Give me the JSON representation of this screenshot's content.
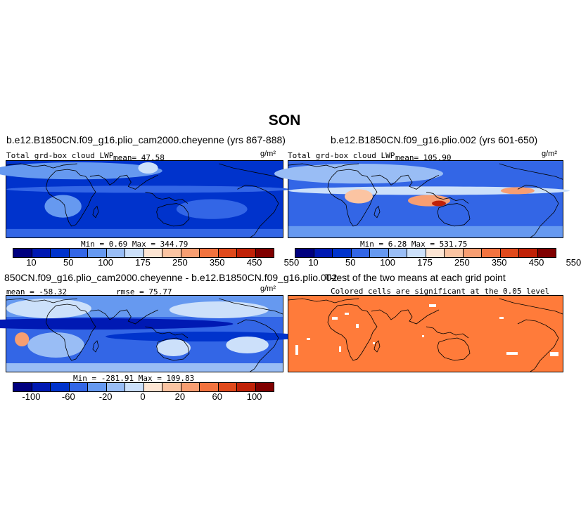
{
  "figure": {
    "title": "SON"
  },
  "panels": [
    {
      "title": "b.e12.B1850CN.f09_g16.plio_cam2000.cheyenne (yrs 867-888)",
      "left_label": "Total grd-box cloud LWP",
      "stat_label": "mean=  47.58",
      "units": "g/m²",
      "minmax": "Min =    0.69  Max = 344.79",
      "colorbar_ticks": [
        "10",
        "50",
        "100",
        "175",
        "250",
        "350",
        "450",
        "550"
      ],
      "field": "control"
    },
    {
      "title": "b.e12.B1850CN.f09_g16.plio.002 (yrs 601-650)",
      "left_label": "Total grd-box cloud LWP",
      "stat_label": "mean= 105.90",
      "units": "g/m²",
      "minmax": "Min =    6.28  Max = 531.75",
      "colorbar_ticks": [
        "10",
        "50",
        "100",
        "175",
        "250",
        "350",
        "450",
        "550"
      ],
      "field": "experiment"
    },
    {
      "title": "850CN.f09_g16.plio_cam2000.cheyenne - b.e12.B1850CN.f09_g16.plio.002",
      "left_label": "mean = -58.32",
      "stat_label": "rmse =  75.77",
      "units": "g/m²",
      "minmax": "Min = -281.91  Max = 109.83",
      "colorbar_ticks": [
        "-100",
        "-60",
        "-20",
        "0",
        "20",
        "60",
        "100"
      ],
      "field": "difference"
    },
    {
      "title": "T-test of the two means at each grid point",
      "subtitle": "Colored cells are significant at the 0.05 level",
      "field": "ttest"
    }
  ],
  "colors": {
    "abs_scale": [
      "#00007f",
      "#0019b3",
      "#0033cc",
      "#3366e6",
      "#6699f0",
      "#99bdf5",
      "#cce0fa",
      "#fde5d3",
      "#fbc4a2",
      "#f79e72",
      "#f2733f",
      "#e04a1c",
      "#c02208",
      "#800000"
    ],
    "diff_scale": [
      "#00007f",
      "#0019b3",
      "#0033cc",
      "#3366e6",
      "#6699f0",
      "#99bdf5",
      "#cce0fa",
      "#fde5d3",
      "#fbc4a2",
      "#f79e72",
      "#f2733f",
      "#e04a1c",
      "#c02208",
      "#800000"
    ],
    "ttest_fill": "#ff7b3a"
  }
}
